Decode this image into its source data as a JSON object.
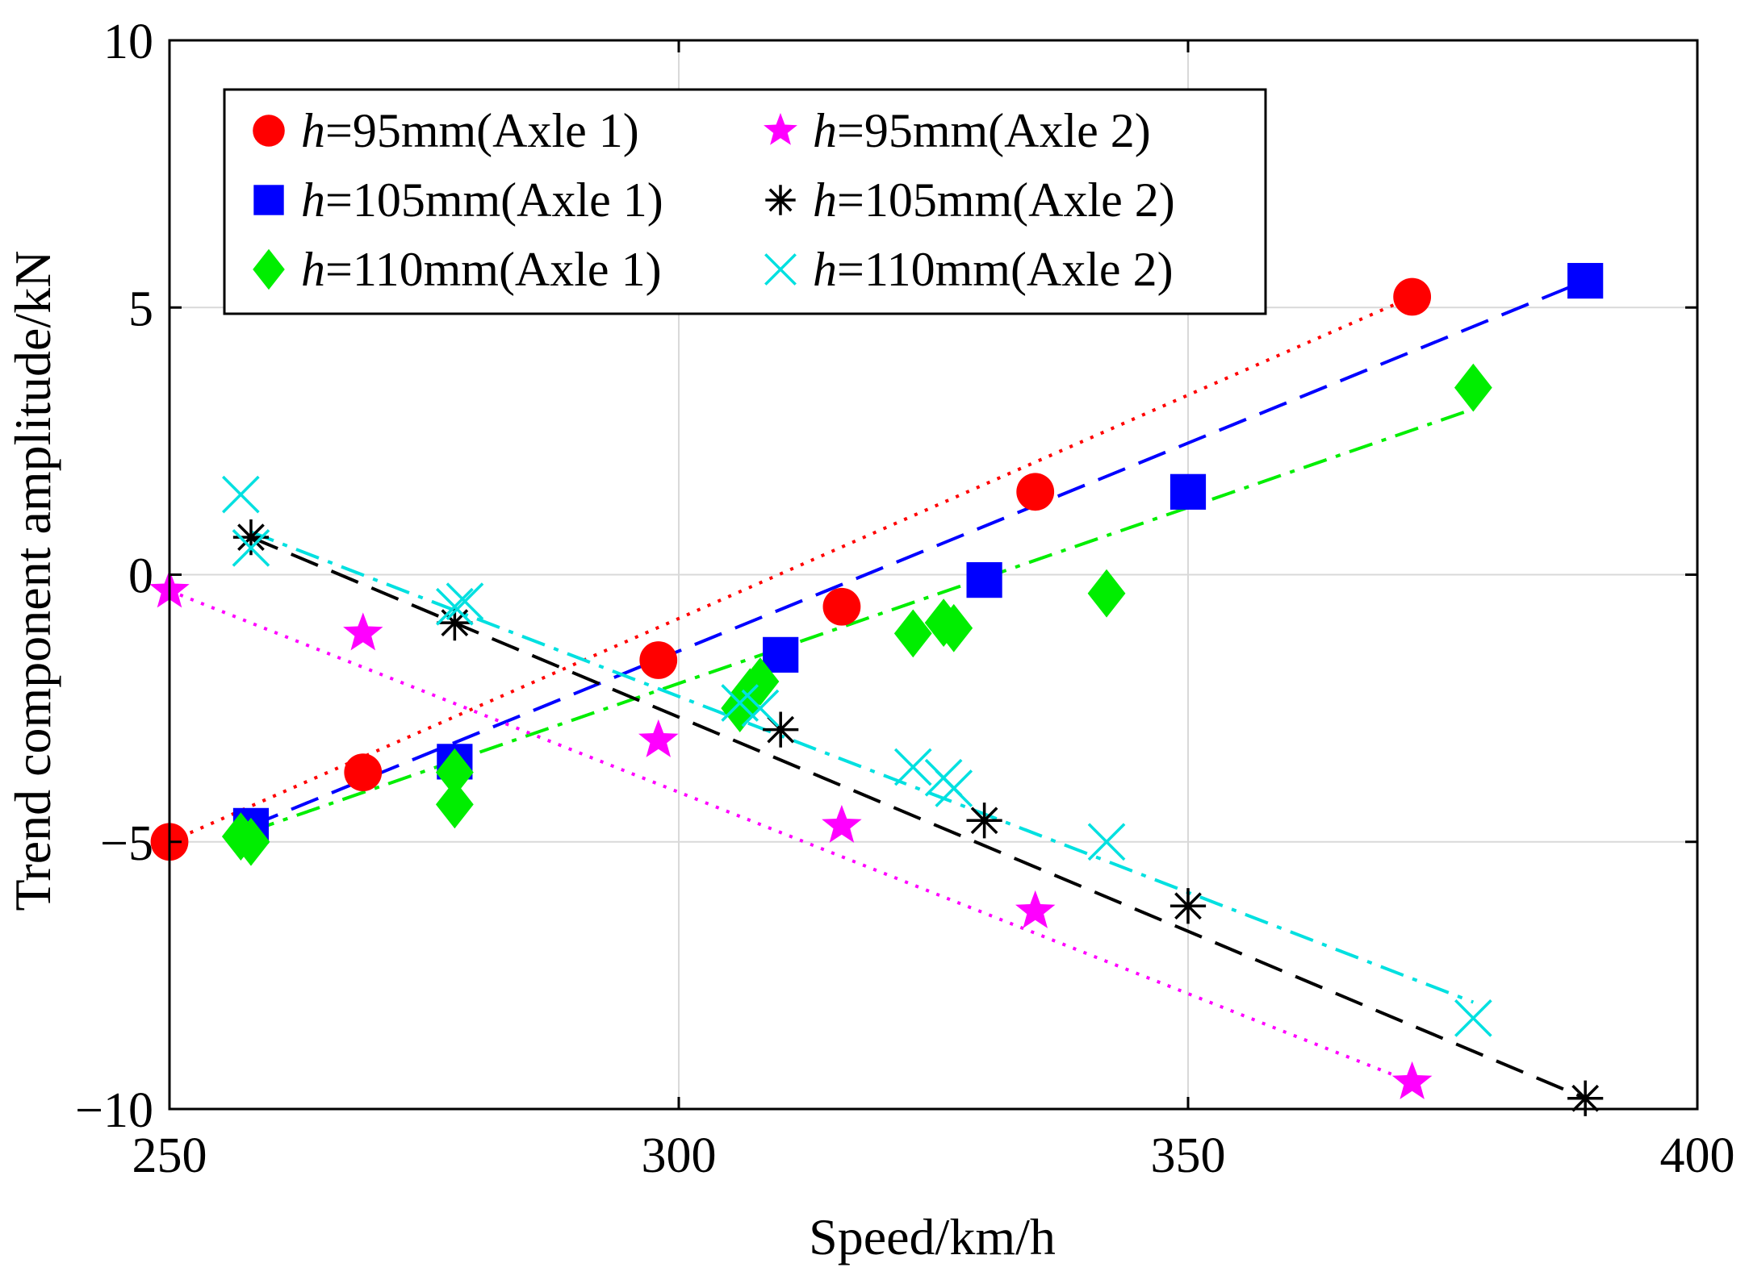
{
  "chart_data": {
    "type": "scatter",
    "title": "",
    "xlabel": "Speed/km/h",
    "ylabel": "Trend component amplitude/kN",
    "xlim": [
      250,
      400
    ],
    "ylim": [
      -10,
      10
    ],
    "xticks": [
      "250",
      "300",
      "350",
      "400"
    ],
    "yticks": [
      "10",
      "5",
      "0",
      "−5",
      "−10"
    ],
    "grid": true,
    "legend_position": "top-left",
    "series": [
      {
        "name": "h=95mm(Axle 1)",
        "var": "h",
        "rest": "=95mm(Axle 1)",
        "marker": "circle",
        "color": "#ff0000",
        "line_style": "dotted",
        "points": [
          [
            250,
            -5.0
          ],
          [
            269,
            -3.7
          ],
          [
            298,
            -1.6
          ],
          [
            316,
            -0.6
          ],
          [
            335,
            1.55
          ],
          [
            372,
            5.2
          ]
        ],
        "fit": [
          [
            250,
            -5.0
          ],
          [
            372,
            5.2
          ]
        ]
      },
      {
        "name": "h=105mm(Axle 1)",
        "var": "h",
        "rest": "=105mm(Axle 1)",
        "marker": "square",
        "color": "#0000ff",
        "line_style": "dashed",
        "points": [
          [
            258,
            -4.7
          ],
          [
            278,
            -3.5
          ],
          [
            310,
            -1.5
          ],
          [
            330,
            -0.1
          ],
          [
            350,
            1.55
          ],
          [
            389,
            5.5
          ]
        ],
        "fit": [
          [
            258,
            -4.7
          ],
          [
            389,
            5.5
          ]
        ]
      },
      {
        "name": "h=110mm(Axle 1)",
        "var": "h",
        "rest": "=110mm(Axle 1)",
        "marker": "diamond",
        "color": "#00ee00",
        "line_style": "dashdot",
        "points": [
          [
            257,
            -4.9
          ],
          [
            258,
            -5.0
          ],
          [
            278,
            -3.7
          ],
          [
            278,
            -4.3
          ],
          [
            306,
            -2.5
          ],
          [
            307,
            -2.2
          ],
          [
            308,
            -2.0
          ],
          [
            323,
            -1.1
          ],
          [
            326,
            -0.9
          ],
          [
            327,
            -1.0
          ],
          [
            342,
            -0.35
          ],
          [
            378,
            3.5
          ]
        ],
        "fit": [
          [
            258,
            -4.8
          ],
          [
            378,
            3.1
          ]
        ]
      },
      {
        "name": "h=95mm(Axle 2)",
        "var": "h",
        "rest": "=95mm(Axle 2)",
        "marker": "star",
        "color": "#ff00ff",
        "line_style": "dotted",
        "points": [
          [
            250,
            -0.3
          ],
          [
            269,
            -1.1
          ],
          [
            298,
            -3.1
          ],
          [
            316,
            -4.7
          ],
          [
            335,
            -6.3
          ],
          [
            372,
            -9.5
          ]
        ],
        "fit": [
          [
            250,
            -0.3
          ],
          [
            372,
            -9.5
          ]
        ]
      },
      {
        "name": "h=105mm(Axle 2)",
        "var": "h",
        "rest": "=105mm(Axle 2)",
        "marker": "asterisk",
        "color": "#000000",
        "line_style": "dashed",
        "points": [
          [
            258,
            0.7
          ],
          [
            278,
            -0.9
          ],
          [
            310,
            -2.9
          ],
          [
            330,
            -4.6
          ],
          [
            350,
            -6.2
          ],
          [
            389,
            -9.8
          ]
        ],
        "fit": [
          [
            258,
            0.7
          ],
          [
            389,
            -9.8
          ]
        ]
      },
      {
        "name": "h=110mm(Axle 2)",
        "var": "h",
        "rest": "=110mm(Axle 2)",
        "marker": "x",
        "color": "#00e0e0",
        "line_style": "dashdot",
        "points": [
          [
            257,
            1.5
          ],
          [
            258,
            0.5
          ],
          [
            278,
            -0.6
          ],
          [
            279,
            -0.5
          ],
          [
            306,
            -2.4
          ],
          [
            308,
            -2.5
          ],
          [
            323,
            -3.6
          ],
          [
            326,
            -3.8
          ],
          [
            327,
            -4.0
          ],
          [
            342,
            -5.0
          ],
          [
            378,
            -8.3
          ]
        ],
        "fit": [
          [
            258,
            0.8
          ],
          [
            378,
            -8.0
          ]
        ]
      }
    ]
  }
}
